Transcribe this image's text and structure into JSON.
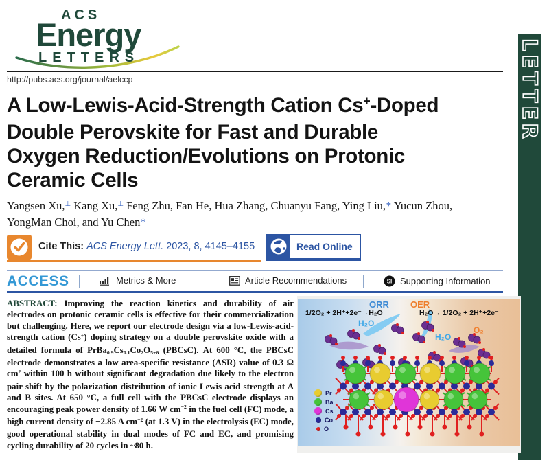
{
  "colors": {
    "green": "#20493a",
    "orange": "#e8872e",
    "blue": "#2c55a3",
    "access_blue": "#3498d5",
    "author_blue": "#3f6ac4",
    "orr": "#3d8ad4",
    "oer": "#ee7e2c",
    "h2o": "#3fa8e8",
    "o2": "#f08030",
    "abstract_label": "#1e4536"
  },
  "header": {
    "logo_acs": "ACS",
    "logo_energy": "Energy",
    "logo_letters": "LETTERS",
    "url": "http://pubs.acs.org/journal/aelccp",
    "banner": "LETTER"
  },
  "title": {
    "lines": [
      [
        {
          "t": "A Low-Lewis-Acid-Strength Cation Cs"
        },
        {
          "t": "+",
          "sup": true
        },
        {
          "t": "-Doped"
        }
      ],
      [
        {
          "t": "Double Perovskite for Fast and Durable"
        }
      ],
      [
        {
          "t": "Oxygen Reduction/Evolutions on Protonic"
        }
      ],
      [
        {
          "t": "Ceramic Cells"
        }
      ]
    ]
  },
  "authors": {
    "line1": [
      {
        "t": "Yangsen Xu,"
      },
      {
        "t": "⊥",
        "sup": true,
        "c": "author_blue"
      },
      {
        "t": " Kang Xu,"
      },
      {
        "t": "⊥",
        "sup": true,
        "c": "author_blue"
      },
      {
        "t": " Feng Zhu, Fan He, Hua Zhang, Chuanyu Fang, Ying Liu,"
      },
      {
        "t": "*",
        "c": "author_blue"
      },
      {
        "t": " Yucun Zhou,"
      }
    ],
    "line2": [
      {
        "t": "YongMan Choi, and Yu Chen"
      },
      {
        "t": "*",
        "c": "author_blue"
      }
    ]
  },
  "cite": {
    "segs": [
      {
        "t": "Cite This: ",
        "b": true
      },
      {
        "t": "ACS Energy Lett.",
        "i": true,
        "c": "blue"
      },
      {
        "t": " 2023, 8, 4145–4155",
        "c": "blue"
      }
    ],
    "read_online": "Read Online"
  },
  "access": {
    "label": "ACCESS",
    "items": [
      {
        "label": "Metrics & More"
      },
      {
        "label": "Article Recommendations"
      },
      {
        "label": "Supporting Information"
      }
    ]
  },
  "abstract": {
    "segs": [
      {
        "t": "ABSTRACT: ",
        "c": "abstract_label"
      },
      {
        "t": "Improving the reaction kinetics and durability of air electrodes on protonic ceramic cells is effective for their commercialization but challenging. Here, we report our electrode design via a low-Lewis-acid-strength cation (Cs"
      },
      {
        "t": "+",
        "sup": true
      },
      {
        "t": ") doping strategy on a double perovskite oxide with a detailed formula of PrBa"
      },
      {
        "t": "0.9",
        "sub": true
      },
      {
        "t": "Cs"
      },
      {
        "t": "0.1",
        "sub": true
      },
      {
        "t": "Co"
      },
      {
        "t": "2",
        "sub": true
      },
      {
        "t": "O"
      },
      {
        "t": "5+δ",
        "sub": true
      },
      {
        "t": " (PBCsC). At 600 °C, the PBCsC electrode demonstrates a low area-specific resistance (ASR) value of 0.3 Ω cm"
      },
      {
        "t": "2",
        "sup": true
      },
      {
        "t": " within 100 h without significant degradation due likely to the electron pair shift by the polarization distribution of ionic Lewis acid strength at A and B sites. At 650 °C, a full cell with the PBCsC electrode displays an encouraging peak power density of 1.66 W cm"
      },
      {
        "t": "−2",
        "sup": true
      },
      {
        "t": " in the fuel cell (FC) mode, a high current density of −2.85 A cm"
      },
      {
        "t": "−2",
        "sup": true
      },
      {
        "t": " (at 1.3 V) in the electrolysis (EC) mode, good operational stability in dual modes of FC and EC, and promising cycling durability of 20 cycles in ~80 h."
      }
    ]
  },
  "figure": {
    "orr": "ORR",
    "oer": "OER",
    "eq_left": "1/2O₂ + 2H⁺+2e⁻→H₂O",
    "eq_right": "H₂O→ 1/2O₂ + 2H⁺+2e⁻",
    "h2o": "H₂O",
    "o2": "O₂",
    "molecule_color": "#6b2f92",
    "water_color": "#85ccf2",
    "blob_color": "#a88fc9",
    "legend": [
      {
        "label": "Pr",
        "color": "#e8cc30"
      },
      {
        "label": "Ba",
        "color": "#46c43a"
      },
      {
        "label": "Cs",
        "color": "#e035d8"
      },
      {
        "label": "Co",
        "color": "#2a2a99"
      },
      {
        "label": "O",
        "color": "#e02020"
      }
    ]
  }
}
